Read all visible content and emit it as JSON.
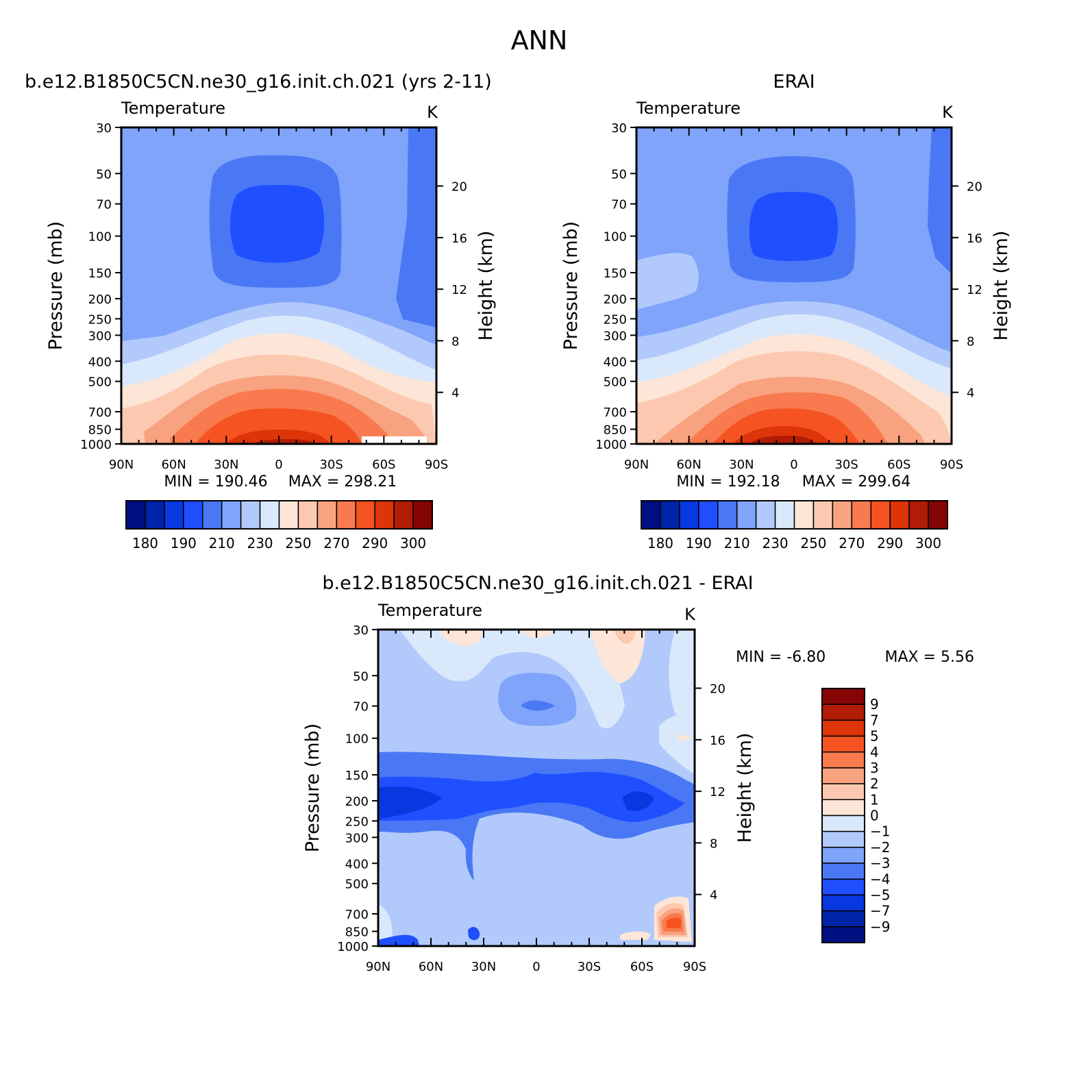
{
  "page_title": "ANN",
  "tick_labels": {
    "pressure": [
      "30",
      "50",
      "70",
      "100",
      "150",
      "200",
      "250",
      "300",
      "400",
      "500",
      "700",
      "850",
      "1000"
    ],
    "height": [
      "20",
      "16",
      "12",
      "8",
      "4"
    ],
    "latitude": [
      "90N",
      "60N",
      "30N",
      "0",
      "30S",
      "60S",
      "90S"
    ]
  },
  "chart_data": [
    {
      "type": "heatmap",
      "panel": "model",
      "panel_title": "b.e12.B1850C5CN.ne30_g16.init.ch.021 (yrs 2-11)",
      "title": "Temperature",
      "units": "K",
      "xlabel": "",
      "ylabel": "Pressure (mb)",
      "ylabel_right": "Height (km)",
      "x_categories": [
        "90N",
        "60N",
        "30N",
        "0",
        "30S",
        "60S",
        "90S"
      ],
      "y_levels_mb": [
        30,
        50,
        70,
        100,
        150,
        200,
        250,
        300,
        400,
        500,
        700,
        850,
        1000
      ],
      "height_ticks_km": [
        20,
        16,
        12,
        8,
        4
      ],
      "min_label": "MIN = 190.46",
      "max_label": "MAX = 298.21",
      "min": 190.46,
      "max": 298.21,
      "colorbar_labels": [
        "180",
        "190",
        "210",
        "230",
        "250",
        "270",
        "290",
        "300"
      ],
      "colorbar_colors": [
        "#000f80",
        "#0024a8",
        "#0838e0",
        "#1f4fff",
        "#4a78f5",
        "#7fa4fa",
        "#b2c9fb",
        "#d9e8fb",
        "#fde6d8",
        "#fcc9b0",
        "#f9a27f",
        "#f87a4e",
        "#f55322",
        "#dd3409",
        "#b21c06",
        "#850505"
      ]
    },
    {
      "type": "heatmap",
      "panel": "obs",
      "panel_title": "ERAI",
      "title": "Temperature",
      "units": "K",
      "xlabel": "",
      "ylabel": "Pressure (mb)",
      "ylabel_right": "Height (km)",
      "x_categories": [
        "90N",
        "60N",
        "30N",
        "0",
        "30S",
        "60S",
        "90S"
      ],
      "y_levels_mb": [
        30,
        50,
        70,
        100,
        150,
        200,
        250,
        300,
        400,
        500,
        700,
        850,
        1000
      ],
      "height_ticks_km": [
        20,
        16,
        12,
        8,
        4
      ],
      "min_label": "MIN = 192.18",
      "max_label": "MAX = 299.64",
      "min": 192.18,
      "max": 299.64,
      "colorbar_labels": [
        "180",
        "190",
        "210",
        "230",
        "250",
        "270",
        "290",
        "300"
      ],
      "colorbar_colors": [
        "#000f80",
        "#0024a8",
        "#0838e0",
        "#1f4fff",
        "#4a78f5",
        "#7fa4fa",
        "#b2c9fb",
        "#d9e8fb",
        "#fde6d8",
        "#fcc9b0",
        "#f9a27f",
        "#f87a4e",
        "#f55322",
        "#dd3409",
        "#b21c06",
        "#850505"
      ]
    },
    {
      "type": "heatmap",
      "panel": "diff",
      "panel_title": "b.e12.B1850C5CN.ne30_g16.init.ch.021 - ERAI",
      "title": "Temperature",
      "units": "K",
      "xlabel": "",
      "ylabel": "Pressure (mb)",
      "ylabel_right": "Height (km)",
      "x_categories": [
        "90N",
        "60N",
        "30N",
        "0",
        "30S",
        "60S",
        "90S"
      ],
      "y_levels_mb": [
        30,
        50,
        70,
        100,
        150,
        200,
        250,
        300,
        400,
        500,
        700,
        850,
        1000
      ],
      "height_ticks_km": [
        20,
        16,
        12,
        8,
        4
      ],
      "min_label": "MIN = -6.80",
      "max_label": "MAX = 5.56",
      "min": -6.8,
      "max": 5.56,
      "colorbar_labels": [
        "9",
        "7",
        "5",
        "4",
        "3",
        "2",
        "1",
        "0",
        "-1",
        "-2",
        "-3",
        "-4",
        "-5",
        "-7",
        "-9"
      ],
      "colorbar_colors": [
        "#850505",
        "#b21c06",
        "#dd3409",
        "#f55322",
        "#f87a4e",
        "#f9a27f",
        "#fcc9b0",
        "#fde6d8",
        "#d9e8fb",
        "#b2c9fb",
        "#7fa4fa",
        "#4a78f5",
        "#1f4fff",
        "#0838e0",
        "#0024a8",
        "#000f80"
      ]
    }
  ]
}
